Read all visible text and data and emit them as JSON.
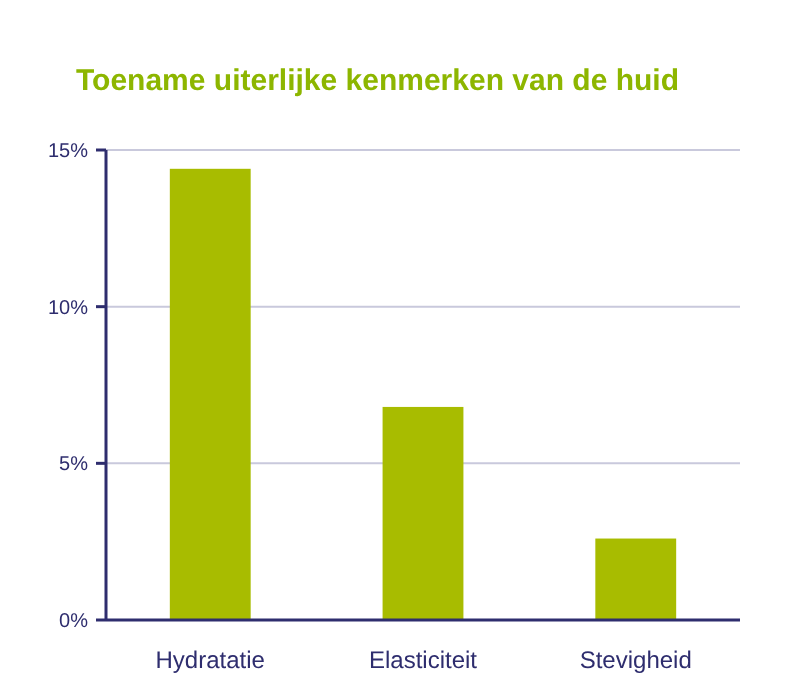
{
  "chart_data": {
    "type": "bar",
    "title": "Toename uiterlijke kenmerken van de huid",
    "categories": [
      "Hydratatie",
      "Elasticiteit",
      "Stevigheid"
    ],
    "values": [
      14.4,
      6.8,
      2.6
    ],
    "color": "#a8bc00",
    "ylim": [
      0,
      15
    ],
    "yticks": [
      {
        "value": 0,
        "label": "0%"
      },
      {
        "value": 5,
        "label": "5%"
      },
      {
        "value": 10,
        "label": "10%"
      },
      {
        "value": 15,
        "label": "15%"
      }
    ],
    "grid": "y"
  }
}
